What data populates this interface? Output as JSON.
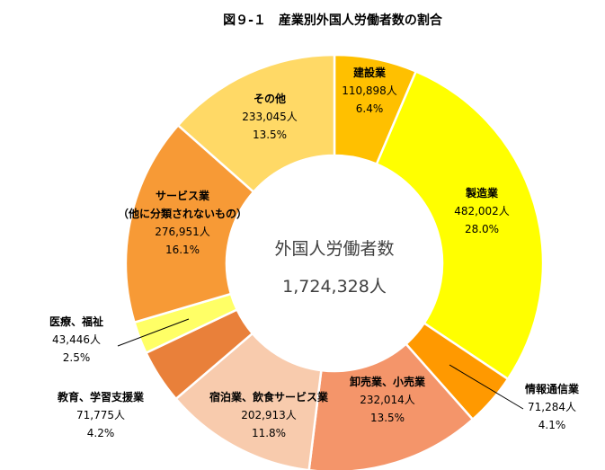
{
  "chart_data": {
    "type": "pie",
    "title": "図９-１　産業別外国人労働者数の割合",
    "center_label": "外国人労働者数",
    "center_value": "1,724,328人",
    "series": [
      {
        "name": "建設業",
        "count_label": "110,898人",
        "pct_label": "6.4%",
        "value": 6.4,
        "color": "#FFC000"
      },
      {
        "name": "製造業",
        "count_label": "482,002人",
        "pct_label": "28.0%",
        "value": 28.0,
        "color": "#FFFF00"
      },
      {
        "name": "情報通信業",
        "count_label": "71,284人",
        "pct_label": "4.1%",
        "value": 4.1,
        "color": "#FF9900"
      },
      {
        "name": "卸売業、小売業",
        "count_label": "232,014人",
        "pct_label": "13.5%",
        "value": 13.5,
        "color": "#F4956A"
      },
      {
        "name": "宿泊業、飲食サービス業",
        "count_label": "202,913人",
        "pct_label": "11.8%",
        "value": 11.8,
        "color": "#F8CBAD"
      },
      {
        "name": "教育、学習支援業",
        "count_label": "71,775人",
        "pct_label": "4.2%",
        "value": 4.2,
        "color": "#E9803A"
      },
      {
        "name": "医療、福祉",
        "count_label": "43,446人",
        "pct_label": "2.5%",
        "value": 2.5,
        "color": "#FFFF66"
      },
      {
        "name": "サービス業",
        "name_sub": "（他に分類されないもの）",
        "count_label": "276,951人",
        "pct_label": "16.1%",
        "value": 16.1,
        "color": "#F79A36"
      },
      {
        "name": "その他",
        "count_label": "233,045人",
        "pct_label": "13.5%",
        "value": 13.5,
        "color": "#FFD966"
      }
    ]
  }
}
